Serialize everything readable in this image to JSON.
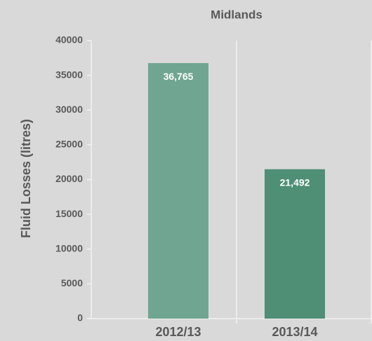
{
  "chart_data": {
    "type": "bar",
    "title": "Midlands",
    "y_label": "Fluid Losses (litres)",
    "categories": [
      "2012/13",
      "2013/14"
    ],
    "values": [
      36765,
      21492
    ],
    "value_labels": [
      "36,765",
      "21,492"
    ],
    "colors": [
      "#70a691",
      "#4e8f75"
    ],
    "ylim": [
      0,
      40000
    ],
    "yticks": [
      0,
      5000,
      10000,
      15000,
      20000,
      25000,
      30000,
      35000,
      40000
    ]
  }
}
